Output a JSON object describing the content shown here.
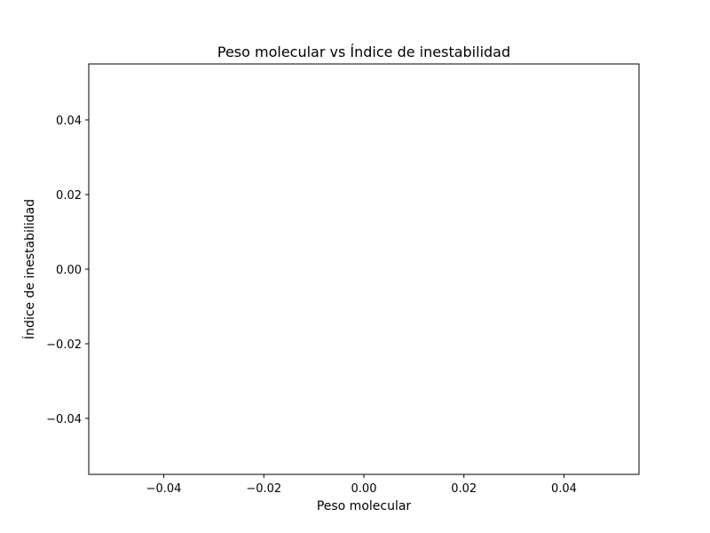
{
  "chart_data": {
    "type": "scatter",
    "title": "Peso molecular vs Índice de inestabilidad",
    "xlabel": "Peso molecular",
    "ylabel": "Índice de inestabilidad",
    "x": [],
    "y": [],
    "xlim": [
      -0.055,
      0.055
    ],
    "ylim": [
      -0.055,
      0.055
    ],
    "xticks": [
      -0.04,
      -0.02,
      0.0,
      0.02,
      0.04
    ],
    "yticks": [
      -0.04,
      -0.02,
      0.0,
      0.02,
      0.04
    ],
    "xtick_labels": [
      "−0.04",
      "−0.02",
      "0.00",
      "0.02",
      "0.04"
    ],
    "ytick_labels": [
      "−0.04",
      "−0.02",
      "0.00",
      "0.02",
      "0.04"
    ],
    "grid": false,
    "colors": {
      "axes": "#000000",
      "background": "#ffffff"
    }
  }
}
